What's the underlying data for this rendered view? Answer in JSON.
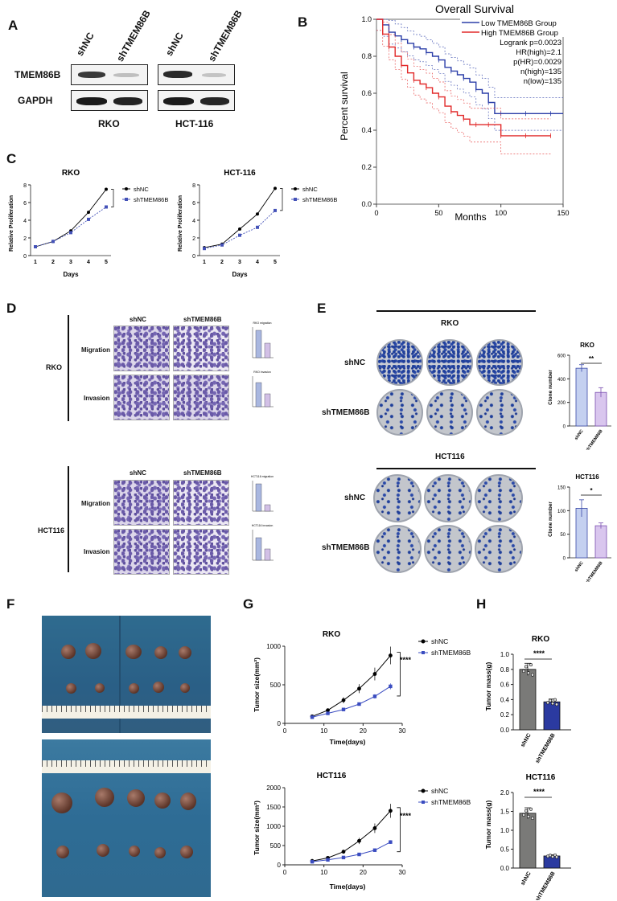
{
  "panels": {
    "A": "A",
    "B": "B",
    "C": "C",
    "D": "D",
    "E": "E",
    "F": "F",
    "G": "G",
    "H": "H"
  },
  "panel_a": {
    "lanes": [
      "shNC",
      "shTMEM86B",
      "shNC",
      "shTMEM86B"
    ],
    "rows": [
      "TMEM86B",
      "GAPDH"
    ],
    "cell_lines": [
      "RKO",
      "HCT-116"
    ]
  },
  "panel_b": {
    "title": "Overall Survival",
    "ylabel": "Percent survival",
    "xlabel": "Months",
    "legend": [
      "Low TMEM86B Group",
      "High TMEM86B Group"
    ],
    "stats": [
      "Logrank p=0.0023",
      "HR(high)=2.1",
      "p(HR)=0.0029",
      "n(high)=135",
      "n(low)=135"
    ]
  },
  "panel_c": {
    "xlabel": "Days",
    "ylabel": "Relative Proliferation"
  },
  "panel_d": {
    "cols": [
      "shNC",
      "shTMEM86B"
    ],
    "rows": [
      "Migration",
      "Invasion"
    ],
    "cell_lines": [
      "RKO",
      "HCT116"
    ],
    "mini_titles": [
      "RKO migration",
      "RKO invasion",
      "HCT116 migration",
      "HCT116 invasion"
    ],
    "mini_ylabel": "Cell number"
  },
  "panel_e": {
    "headers": [
      "RKO",
      "HCT116"
    ],
    "rows": [
      "shNC",
      "shTMEM86B"
    ],
    "chart_titles": [
      "RKO",
      "HCT116"
    ],
    "ylabel": "Clone number",
    "sig": [
      "**",
      "*"
    ]
  },
  "panel_g": {
    "xlabel": "Time(days)",
    "ylabel": "Tumor size(mm³)",
    "sig": "****"
  },
  "panel_h": {
    "ylabel": "Tumor mass(g)",
    "sig": "****"
  },
  "chart_data": [
    {
      "id": "B",
      "type": "line",
      "title": "Overall Survival",
      "xlabel": "Months",
      "ylabel": "Percent survival",
      "xlim": [
        0,
        150
      ],
      "ylim": [
        0,
        1.0
      ],
      "xticks": [
        0,
        50,
        100,
        150
      ],
      "yticks": [
        0.0,
        0.2,
        0.4,
        0.6,
        0.8,
        1.0
      ],
      "series": [
        {
          "name": "Low TMEM86B Group",
          "color": "#2b3ea8",
          "x": [
            0,
            5,
            10,
            15,
            20,
            25,
            30,
            35,
            40,
            45,
            50,
            55,
            60,
            65,
            70,
            75,
            80,
            85,
            90,
            95,
            100,
            110,
            120,
            130,
            140,
            150
          ],
          "y": [
            1.0,
            0.97,
            0.93,
            0.91,
            0.89,
            0.87,
            0.85,
            0.84,
            0.82,
            0.8,
            0.78,
            0.74,
            0.72,
            0.7,
            0.68,
            0.66,
            0.62,
            0.6,
            0.55,
            0.49,
            0.49,
            0.49,
            0.49,
            0.49,
            0.49,
            0.49
          ]
        },
        {
          "name": "High TMEM86B Group",
          "color": "#e22a2a",
          "x": [
            0,
            5,
            10,
            15,
            20,
            25,
            30,
            35,
            40,
            45,
            50,
            55,
            60,
            65,
            70,
            75,
            80,
            85,
            90,
            95,
            100,
            110,
            120,
            130,
            140
          ],
          "y": [
            1.0,
            0.92,
            0.85,
            0.8,
            0.75,
            0.71,
            0.67,
            0.65,
            0.63,
            0.6,
            0.58,
            0.53,
            0.5,
            0.48,
            0.46,
            0.43,
            0.43,
            0.43,
            0.43,
            0.43,
            0.37,
            0.37,
            0.37,
            0.37,
            0.37
          ]
        }
      ]
    },
    {
      "id": "C1",
      "type": "line",
      "title": "RKO",
      "xlabel": "Days",
      "ylabel": "Relative Proliferation",
      "ylim": [
        0,
        8
      ],
      "yticks": [
        0,
        2,
        4,
        6,
        8
      ],
      "categories": [
        "1",
        "2",
        "3",
        "4",
        "5"
      ],
      "series": [
        {
          "name": "shNC",
          "values": [
            1.0,
            1.6,
            2.8,
            4.9,
            7.5
          ]
        },
        {
          "name": "shTMEM86B",
          "values": [
            1.0,
            1.6,
            2.6,
            4.1,
            5.5
          ]
        }
      ]
    },
    {
      "id": "C2",
      "type": "line",
      "title": "HCT-116",
      "xlabel": "Days",
      "ylabel": "Relative Proliferation",
      "ylim": [
        0,
        8
      ],
      "yticks": [
        0,
        2,
        4,
        6,
        8
      ],
      "categories": [
        "1",
        "2",
        "3",
        "4",
        "5"
      ],
      "series": [
        {
          "name": "shNC",
          "values": [
            0.9,
            1.3,
            3.0,
            4.7,
            7.6
          ]
        },
        {
          "name": "shTMEM86B",
          "values": [
            0.8,
            1.2,
            2.3,
            3.2,
            5.1
          ]
        }
      ]
    },
    {
      "id": "E1",
      "type": "bar",
      "title": "RKO",
      "ylabel": "Clone number",
      "ylim": [
        0,
        600
      ],
      "yticks": [
        0,
        200,
        400,
        600
      ],
      "categories": [
        "shNC",
        "shTMEM86B"
      ],
      "values": [
        490,
        285
      ],
      "errors": [
        30,
        40
      ]
    },
    {
      "id": "E2",
      "type": "bar",
      "title": "HCT116",
      "ylabel": "Clone number",
      "ylim": [
        0,
        150
      ],
      "yticks": [
        0,
        50,
        100,
        150
      ],
      "categories": [
        "shNC",
        "shTMEM86B"
      ],
      "values": [
        105,
        68
      ],
      "errors": [
        18,
        6
      ]
    },
    {
      "id": "G1",
      "type": "line",
      "title": "RKO",
      "xlabel": "Time(days)",
      "ylabel": "Tumor size(mm³)",
      "xlim": [
        0,
        30
      ],
      "ylim": [
        0,
        1000
      ],
      "xticks": [
        0,
        10,
        20,
        30
      ],
      "yticks": [
        0,
        500,
        1000
      ],
      "x": [
        7,
        11,
        15,
        19,
        23,
        27
      ],
      "series": [
        {
          "name": "shNC",
          "values": [
            90,
            170,
            300,
            450,
            640,
            880
          ]
        },
        {
          "name": "shTMEM86B",
          "values": [
            80,
            130,
            180,
            250,
            350,
            480
          ]
        }
      ]
    },
    {
      "id": "G2",
      "type": "line",
      "title": "HCT116",
      "xlabel": "Time(days)",
      "ylabel": "Tumor size(mm³)",
      "xlim": [
        0,
        30
      ],
      "ylim": [
        0,
        2000
      ],
      "xticks": [
        0,
        10,
        20,
        30
      ],
      "yticks": [
        0,
        500,
        1000,
        1500,
        2000
      ],
      "x": [
        7,
        11,
        15,
        19,
        23,
        27
      ],
      "series": [
        {
          "name": "shNC",
          "values": [
            100,
            180,
            340,
            620,
            950,
            1400
          ]
        },
        {
          "name": "shTMEM86B",
          "values": [
            80,
            130,
            190,
            270,
            380,
            590
          ]
        }
      ]
    },
    {
      "id": "H1",
      "type": "bar",
      "title": "RKO",
      "ylabel": "Tumor mass(g)",
      "ylim": [
        0,
        1.0
      ],
      "yticks": [
        0.0,
        0.2,
        0.4,
        0.6,
        0.8,
        1.0
      ],
      "categories": [
        "shNC",
        "shTMEM86B"
      ],
      "values": [
        0.8,
        0.37
      ],
      "colors": [
        "#7a7a78",
        "#2b3aa0"
      ]
    },
    {
      "id": "H2",
      "type": "bar",
      "title": "HCT116",
      "ylabel": "Tumor mass(g)",
      "ylim": [
        0,
        2.0
      ],
      "yticks": [
        0.0,
        0.5,
        1.0,
        1.5,
        2.0
      ],
      "categories": [
        "shNC",
        "shTMEM86B"
      ],
      "values": [
        1.45,
        0.32
      ],
      "colors": [
        "#7a7a78",
        "#2b3aa0"
      ]
    }
  ]
}
